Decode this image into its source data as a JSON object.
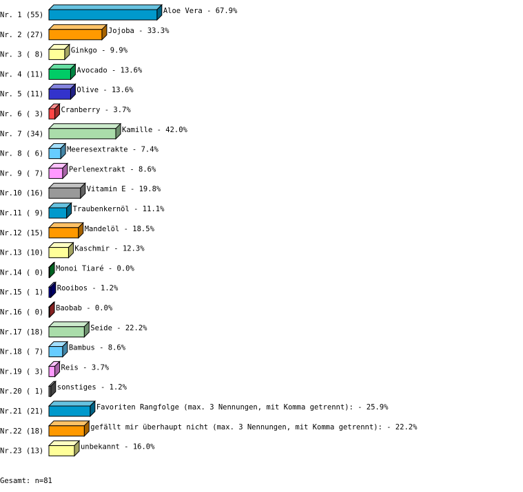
{
  "chart_data": {
    "type": "bar",
    "orientation": "horizontal",
    "style": "3d",
    "row_labels": [
      "Nr. 1 (55)",
      "Nr. 2 (27)",
      "Nr. 3 ( 8)",
      "Nr. 4 (11)",
      "Nr. 5 (11)",
      "Nr. 6 ( 3)",
      "Nr. 7 (34)",
      "Nr. 8 ( 6)",
      "Nr. 9 ( 7)",
      "Nr.10 (16)",
      "Nr.11 ( 9)",
      "Nr.12 (15)",
      "Nr.13 (10)",
      "Nr.14 ( 0)",
      "Nr.15 ( 1)",
      "Nr.16 ( 0)",
      "Nr.17 (18)",
      "Nr.18 ( 7)",
      "Nr.19 ( 3)",
      "Nr.20 ( 1)",
      "Nr.21 (21)",
      "Nr.22 (18)",
      "Nr.23 (13)"
    ],
    "categories": [
      "Aloe Vera",
      "Jojoba",
      "Ginkgo",
      "Avocado",
      "Olive",
      "Cranberry",
      "Kamille",
      "Meeresextrakte",
      "Perlenextrakt",
      "Vitamin E",
      "Traubenkernöl",
      "Mandelöl",
      "Kaschmir",
      "Monoi Tiaré",
      "Rooibos",
      "Baobab",
      "Seide",
      "Bambus",
      "Reis",
      "sonstiges",
      "Favoriten Rangfolge (max. 3 Nennungen, mit Komma getrennt):",
      "gefällt mir überhaupt nicht (max. 3 Nennungen, mit Komma getrennt):",
      "unbekannt"
    ],
    "counts": [
      55,
      27,
      8,
      11,
      11,
      3,
      34,
      6,
      7,
      16,
      9,
      15,
      10,
      0,
      1,
      0,
      18,
      7,
      3,
      1,
      21,
      18,
      13
    ],
    "values": [
      67.9,
      33.3,
      9.9,
      13.6,
      13.6,
      3.7,
      42.0,
      7.4,
      8.6,
      19.8,
      11.1,
      18.5,
      12.3,
      0.0,
      1.2,
      0.0,
      22.2,
      8.6,
      3.7,
      1.2,
      25.9,
      22.2,
      16.0
    ],
    "value_labels": [
      "67.9%",
      "33.3%",
      "9.9%",
      "13.6%",
      "13.6%",
      "3.7%",
      "42.0%",
      "7.4%",
      "8.6%",
      "19.8%",
      "11.1%",
      "18.5%",
      "12.3%",
      "0.0%",
      "1.2%",
      "0.0%",
      "22.2%",
      "8.6%",
      "3.7%",
      "1.2%",
      "25.9%",
      "22.2%",
      "16.0%"
    ],
    "colors": [
      "#0099cc",
      "#ff9900",
      "#ffff99",
      "#00cc66",
      "#3333cc",
      "#ff4444",
      "#aaddaa",
      "#66ccff",
      "#ff99ff",
      "#999999",
      "#0099cc",
      "#ff9900",
      "#ffff99",
      "#009933",
      "#000099",
      "#cc3333",
      "#aaddaa",
      "#66ccff",
      "#ff99ff",
      "#666666",
      "#0099cc",
      "#ff9900",
      "#ffff99"
    ],
    "xlim": [
      0,
      100
    ],
    "grid": false,
    "legend": "none"
  },
  "footer": {
    "total": "Gesamt: n=81"
  }
}
